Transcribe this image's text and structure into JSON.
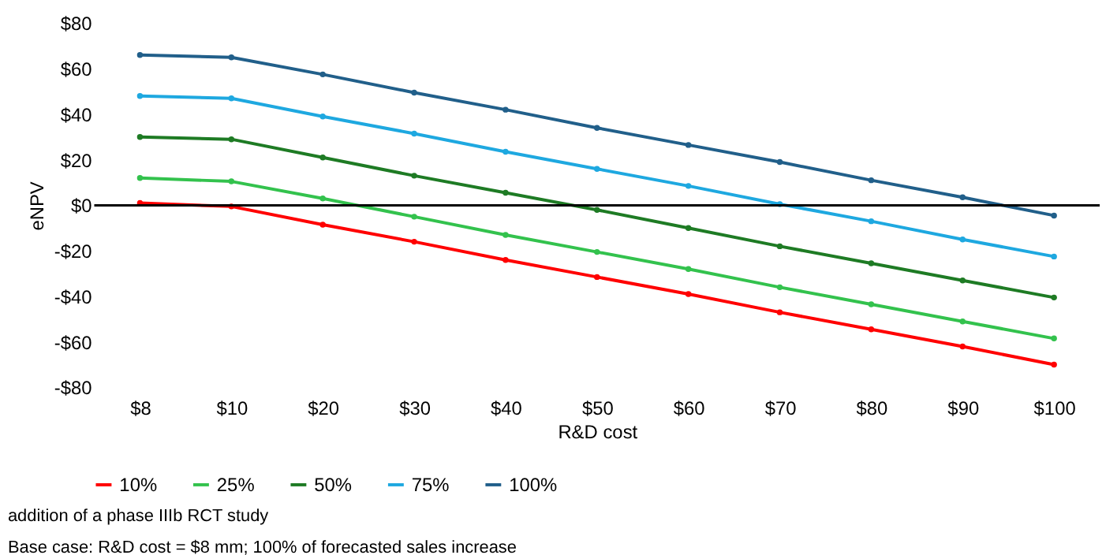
{
  "chart_data": {
    "type": "line",
    "xlabel": "R&D cost",
    "ylabel": "eNPV",
    "categories": [
      "$8",
      "$10",
      "$20",
      "$30",
      "$40",
      "$50",
      "$60",
      "$70",
      "$80",
      "$90",
      "$100"
    ],
    "series": [
      {
        "name": "10%",
        "color": "#ff0000",
        "values": [
          1,
          -0.5,
          -8.5,
          -16,
          -24,
          -31.5,
          -39,
          -47,
          -54.5,
          -62,
          -70
        ]
      },
      {
        "name": "25%",
        "color": "#33c24d",
        "values": [
          12,
          10.5,
          3,
          -5,
          -13,
          -20.5,
          -28,
          -36,
          -43.5,
          -51,
          -58.5
        ]
      },
      {
        "name": "50%",
        "color": "#1e7b24",
        "values": [
          30,
          29,
          21,
          13,
          5.5,
          -2,
          -10,
          -18,
          -25.5,
          -33,
          -40.5
        ]
      },
      {
        "name": "75%",
        "color": "#1ea8e0",
        "values": [
          48,
          47,
          39,
          31.5,
          23.5,
          16,
          8.5,
          0.5,
          -7,
          -15,
          -22.5
        ]
      },
      {
        "name": "100%",
        "color": "#215f8a",
        "values": [
          66,
          65,
          57.5,
          49.5,
          42,
          34,
          26.5,
          19,
          11,
          3.5,
          -4.5
        ]
      }
    ],
    "ylim": [
      -80,
      80
    ],
    "yticks": [
      {
        "value": -80,
        "label": "-$80"
      },
      {
        "value": -60,
        "label": "-$60"
      },
      {
        "value": -40,
        "label": "-$40"
      },
      {
        "value": -20,
        "label": "-$20"
      },
      {
        "value": 0,
        "label": "$0"
      },
      {
        "value": 20,
        "label": "$20"
      },
      {
        "value": 40,
        "label": "$40"
      },
      {
        "value": 60,
        "label": "$60"
      },
      {
        "value": 80,
        "label": "$80"
      }
    ],
    "ref_lines": [
      {
        "axis": "y",
        "value": 0,
        "color": "#000000"
      }
    ],
    "grid": false,
    "legend": "bottom",
    "marker": "circle",
    "line_style": "solid",
    "annotations": [
      "addition of a phase IIIb RCT study",
      "Base case: R&D cost = $8 mm; 100% of forecasted sales increase"
    ]
  }
}
